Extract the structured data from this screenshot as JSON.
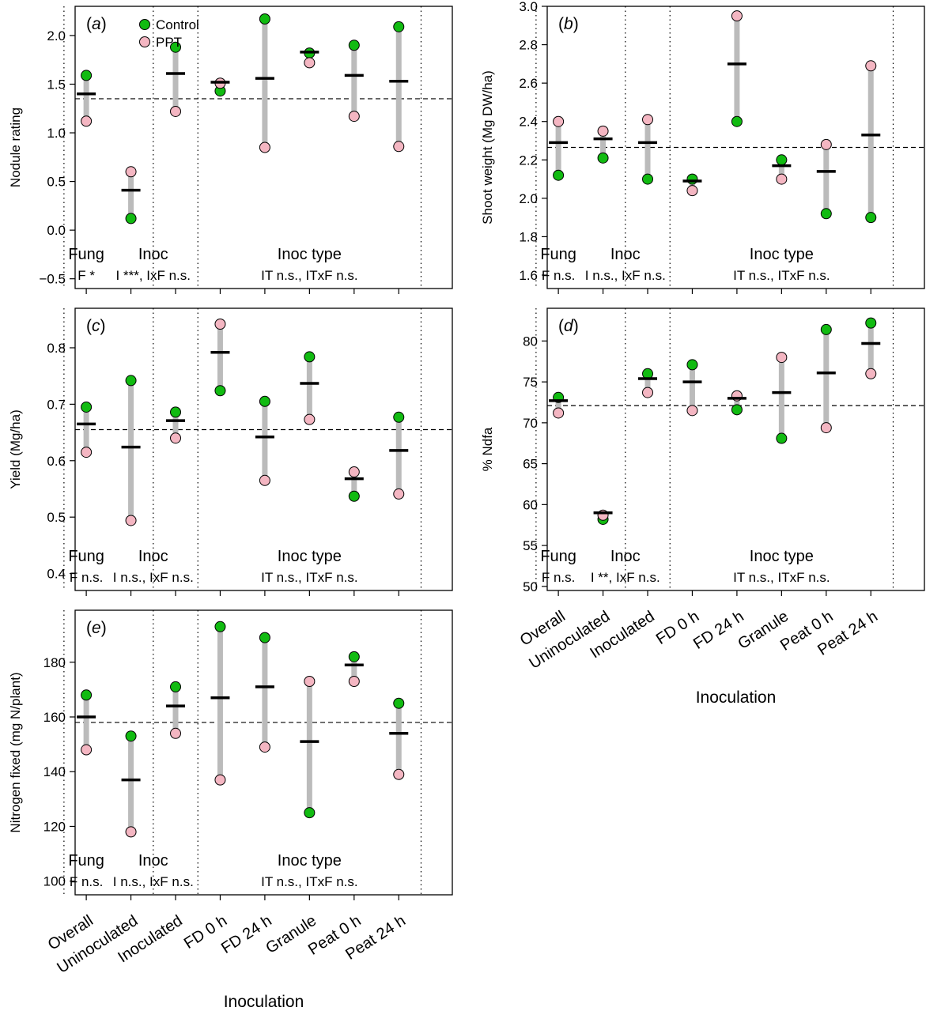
{
  "colors": {
    "control": "#11bb11",
    "ppt": "#f4b6c2",
    "range": "#bbbbbb",
    "mean": "#000000"
  },
  "chart_data": [
    {
      "id": "a",
      "type": "scatter",
      "tag": "a",
      "ylabel": "Nodule rating",
      "ylim": [
        -0.6,
        2.3
      ],
      "yticks": [
        -0.5,
        0.0,
        0.5,
        1.0,
        1.5,
        2.0
      ],
      "yticklabels": [
        "−0.5",
        "0.0",
        "0.5",
        "1.0",
        "1.5",
        "2.0"
      ],
      "overall_mean": 1.35,
      "categories": [
        "Overall",
        "Uninoculated",
        "Inoculated",
        "FD 0 h",
        "FD 24 h",
        "Granule",
        "Peat 0 h",
        "Peat 24 h"
      ],
      "series": [
        {
          "name": "Control",
          "values": [
            1.59,
            0.12,
            1.88,
            1.43,
            2.17,
            1.82,
            1.9,
            2.09
          ]
        },
        {
          "name": "PPT",
          "values": [
            1.12,
            0.6,
            1.22,
            1.51,
            0.85,
            1.72,
            1.17,
            0.86
          ]
        }
      ],
      "means": [
        1.4,
        0.41,
        1.61,
        1.52,
        1.56,
        1.83,
        1.59,
        1.53
      ],
      "groups": [
        "Fung",
        "Inoc",
        "Inoc type"
      ],
      "stats": [
        "F *",
        "I ***, IxF n.s.",
        "IT n.s., ITxF n.s."
      ],
      "legend": [
        "Control",
        "PPT"
      ],
      "xlabel": ""
    },
    {
      "id": "b",
      "type": "scatter",
      "tag": "b",
      "ylabel": "Shoot weight (Mg DW/ha)",
      "ylim": [
        1.53,
        3.0
      ],
      "yticks": [
        1.6,
        1.8,
        2.0,
        2.2,
        2.4,
        2.6,
        2.8,
        3.0
      ],
      "yticklabels": [
        "1.6",
        "1.8",
        "2.0",
        "2.2",
        "2.4",
        "2.6",
        "2.8",
        "3.0"
      ],
      "overall_mean": 2.265,
      "categories": [
        "Overall",
        "Uninoculated",
        "Inoculated",
        "FD 0 h",
        "FD 24 h",
        "Granule",
        "Peat 0 h",
        "Peat 24 h"
      ],
      "series": [
        {
          "name": "Control",
          "values": [
            2.12,
            2.21,
            2.1,
            2.1,
            2.4,
            2.2,
            1.92,
            1.9
          ]
        },
        {
          "name": "PPT",
          "values": [
            2.4,
            2.35,
            2.41,
            2.04,
            2.95,
            2.1,
            2.28,
            2.69
          ]
        }
      ],
      "means": [
        2.29,
        2.31,
        2.29,
        2.09,
        2.7,
        2.17,
        2.14,
        2.33
      ],
      "groups": [
        "Fung",
        "Inoc",
        "Inoc type"
      ],
      "stats": [
        "F n.s.",
        "I n.s., IxF n.s.",
        "IT n.s., ITxF n.s."
      ],
      "xlabel": ""
    },
    {
      "id": "c",
      "type": "scatter",
      "tag": "c",
      "ylabel": "Yield (Mg/ha)",
      "ylim": [
        0.37,
        0.87
      ],
      "yticks": [
        0.4,
        0.5,
        0.6,
        0.7,
        0.8
      ],
      "yticklabels": [
        "0.4",
        "0.5",
        "0.6",
        "0.7",
        "0.8"
      ],
      "overall_mean": 0.655,
      "categories": [
        "Overall",
        "Uninoculated",
        "Inoculated",
        "FD 0 h",
        "FD 24 h",
        "Granule",
        "Peat 0 h",
        "Peat 24 h"
      ],
      "series": [
        {
          "name": "Control",
          "values": [
            0.695,
            0.742,
            0.686,
            0.724,
            0.705,
            0.784,
            0.537,
            0.677
          ]
        },
        {
          "name": "PPT",
          "values": [
            0.615,
            0.494,
            0.64,
            0.842,
            0.565,
            0.673,
            0.58,
            0.541
          ]
        }
      ],
      "means": [
        0.665,
        0.624,
        0.671,
        0.792,
        0.642,
        0.737,
        0.568,
        0.618
      ],
      "groups": [
        "Fung",
        "Inoc",
        "Inoc type"
      ],
      "stats": [
        "F n.s.",
        "I n.s., IxF n.s.",
        "IT n.s., ITxF n.s."
      ],
      "xlabel": ""
    },
    {
      "id": "d",
      "type": "scatter",
      "tag": "d",
      "ylabel": "% Ndfa",
      "ylim": [
        49.5,
        84.0
      ],
      "yticks": [
        50,
        55,
        60,
        65,
        70,
        75,
        80
      ],
      "yticklabels": [
        "50",
        "55",
        "60",
        "65",
        "70",
        "75",
        "80"
      ],
      "overall_mean": 72.1,
      "categories": [
        "Overall",
        "Uninoculated",
        "Inoculated",
        "FD 0 h",
        "FD 24 h",
        "Granule",
        "Peat 0 h",
        "Peat 24 h"
      ],
      "series": [
        {
          "name": "Control",
          "values": [
            73.1,
            58.2,
            76.0,
            77.1,
            71.6,
            68.1,
            81.4,
            82.2
          ]
        },
        {
          "name": "PPT",
          "values": [
            71.2,
            58.7,
            73.7,
            71.5,
            73.3,
            78.0,
            69.4,
            76.0
          ]
        }
      ],
      "means": [
        72.7,
        59.0,
        75.4,
        75.0,
        73.0,
        73.7,
        76.1,
        79.7
      ],
      "groups": [
        "Fung",
        "Inoc",
        "Inoc type"
      ],
      "stats": [
        "F n.s.",
        "I **, IxF n.s.",
        "IT n.s., ITxF n.s."
      ],
      "xlabel": "Inoculation"
    },
    {
      "id": "e",
      "type": "scatter",
      "tag": "e",
      "ylabel": "Nitrogen fixed (mg N/plant)",
      "ylim": [
        95,
        199
      ],
      "yticks": [
        100,
        120,
        140,
        160,
        180
      ],
      "yticklabels": [
        "100",
        "120",
        "140",
        "160",
        "180"
      ],
      "overall_mean": 158,
      "categories": [
        "Overall",
        "Uninoculated",
        "Inoculated",
        "FD 0 h",
        "FD 24 h",
        "Granule",
        "Peat 0 h",
        "Peat 24 h"
      ],
      "series": [
        {
          "name": "Control",
          "values": [
            168,
            153,
            171,
            193,
            189,
            125,
            182,
            165
          ]
        },
        {
          "name": "PPT",
          "values": [
            148,
            118,
            154,
            137,
            149,
            173,
            173,
            139
          ]
        }
      ],
      "means": [
        160,
        137,
        164,
        167,
        171,
        151,
        179,
        154
      ],
      "groups": [
        "Fung",
        "Inoc",
        "Inoc type"
      ],
      "stats": [
        "F n.s.",
        "I n.s., IxF n.s.",
        "IT n.s., ITxF n.s."
      ],
      "xlabel": "Inoculation"
    }
  ]
}
